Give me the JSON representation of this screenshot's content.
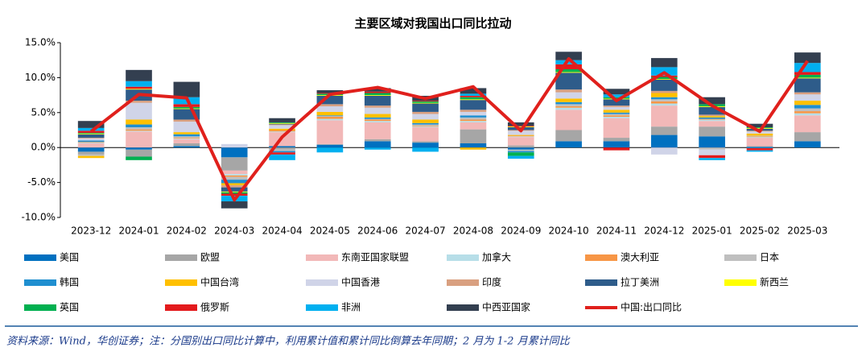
{
  "chart_data": {
    "type": "bar",
    "title": "主要区域对我国出口同比拉动",
    "categories": [
      "2023-12",
      "2024-01",
      "2024-02",
      "2024-03",
      "2024-04",
      "2024-05",
      "2024-06",
      "2024-07",
      "2024-08",
      "2024-09",
      "2024-10",
      "2024-11",
      "2024-12",
      "2025-01",
      "2025-02",
      "2025-03"
    ],
    "series": [
      {
        "name": "美国",
        "color": "#0070c0",
        "values": [
          -0.6,
          -0.3,
          0.2,
          -1.4,
          0.2,
          0.4,
          0.9,
          0.7,
          0.6,
          -0.3,
          0.9,
          0.9,
          1.8,
          1.6,
          0.1,
          0.9
        ]
      },
      {
        "name": "欧盟",
        "color": "#a6a6a6",
        "values": [
          -0.4,
          -1.0,
          0.4,
          -1.9,
          -0.3,
          0.1,
          0.3,
          0.2,
          2.0,
          0.3,
          1.6,
          0.5,
          1.2,
          1.4,
          0.1,
          1.3
        ]
      },
      {
        "name": "东南亚国家联盟",
        "color": "#f2b8b8",
        "values": [
          0.6,
          2.3,
          0.6,
          -0.5,
          2.0,
          3.4,
          2.4,
          2.0,
          1.0,
          1.2,
          2.9,
          2.8,
          3.0,
          0.8,
          1.2,
          2.4
        ]
      },
      {
        "name": "加拿大",
        "color": "#b7dee8",
        "values": [
          0.1,
          0.1,
          0.1,
          -0.2,
          0.1,
          0.2,
          0.2,
          0.1,
          0.2,
          0.1,
          0.3,
          0.2,
          0.3,
          0.2,
          0.1,
          0.3
        ]
      },
      {
        "name": "澳大利亚",
        "color": "#f79646",
        "values": [
          0.1,
          0.2,
          0.1,
          -0.2,
          0.2,
          0.3,
          0.2,
          0.1,
          0.2,
          0.1,
          0.2,
          0.2,
          0.3,
          0.1,
          0.1,
          0.3
        ]
      },
      {
        "name": "日本",
        "color": "#bfbfbf",
        "values": [
          -0.2,
          0.3,
          0.2,
          -0.4,
          -0.2,
          0.1,
          0.1,
          0.2,
          0.3,
          -0.2,
          0.3,
          0.2,
          0.3,
          -0.3,
          0.1,
          0.4
        ]
      },
      {
        "name": "韩国",
        "color": "#1f8fd0",
        "values": [
          0.2,
          0.4,
          0.3,
          -0.5,
          -0.2,
          0.1,
          0.2,
          0.2,
          0.3,
          -0.2,
          0.3,
          0.2,
          0.3,
          0.2,
          -0.1,
          0.5
        ]
      },
      {
        "name": "中国台湾",
        "color": "#ffc000",
        "values": [
          -0.3,
          0.7,
          0.3,
          -0.3,
          0.2,
          0.5,
          0.5,
          0.5,
          -0.3,
          0.1,
          0.5,
          0.4,
          0.6,
          0.2,
          0.3,
          0.6
        ]
      },
      {
        "name": "中国香港",
        "color": "#d0d4e8",
        "values": [
          0.3,
          2.4,
          1.5,
          0.5,
          0.5,
          0.8,
          0.9,
          0.8,
          0.5,
          0.6,
          0.9,
          0.4,
          -1.0,
          -0.8,
          0.3,
          0.9
        ]
      },
      {
        "name": "印度",
        "color": "#d9a080",
        "values": [
          0.1,
          0.3,
          0.3,
          -0.3,
          0.1,
          0.3,
          0.3,
          0.3,
          0.3,
          0.1,
          0.4,
          0.2,
          0.3,
          0.2,
          0.1,
          0.3
        ]
      },
      {
        "name": "拉丁美洲",
        "color": "#2e5c8a",
        "values": [
          0.5,
          1.6,
          1.5,
          -0.6,
          0.1,
          1.2,
          1.4,
          1.2,
          1.4,
          0.4,
          2.4,
          0.9,
          1.6,
          1.1,
          0.3,
          2.0
        ]
      },
      {
        "name": "新西兰",
        "color": "#ffff00",
        "values": [
          0.1,
          0.1,
          0.1,
          -0.1,
          0.1,
          0.1,
          0.1,
          0.1,
          0.1,
          0.1,
          0.1,
          0.1,
          0.1,
          0.1,
          0.1,
          0.1
        ]
      },
      {
        "name": "英国",
        "color": "#00b050",
        "values": [
          0.1,
          -0.5,
          0.2,
          -0.2,
          0.1,
          0.2,
          0.3,
          0.2,
          0.3,
          -0.5,
          0.4,
          0.2,
          0.3,
          0.3,
          0.1,
          0.4
        ]
      },
      {
        "name": "俄罗斯",
        "color": "#e31a1c",
        "values": [
          0.3,
          0.3,
          0.4,
          -0.3,
          -0.3,
          0.1,
          0.2,
          0.1,
          0.2,
          0.1,
          0.7,
          -0.4,
          0.2,
          -0.4,
          -0.3,
          0.4
        ]
      },
      {
        "name": "非洲",
        "color": "#00b0f0",
        "values": [
          0.4,
          0.8,
          1.0,
          -0.8,
          -0.8,
          -0.7,
          -0.3,
          -0.6,
          0.3,
          -0.4,
          0.6,
          0.4,
          1.2,
          -0.3,
          -0.2,
          1.3
        ]
      },
      {
        "name": "中西亚国家",
        "color": "#333f50",
        "values": [
          1.0,
          1.6,
          2.2,
          -1.0,
          0.6,
          0.4,
          0.5,
          0.7,
          0.8,
          0.5,
          1.2,
          0.8,
          1.3,
          1.0,
          0.5,
          1.5
        ]
      },
      {
        "name": "中国:出口同比",
        "color": "#e0201c",
        "type": "line",
        "values": [
          2.3,
          7.6,
          7.1,
          -7.5,
          1.5,
          7.6,
          8.6,
          7.0,
          8.7,
          2.4,
          12.7,
          6.7,
          10.7,
          6.0,
          2.3,
          12.4
        ]
      }
    ],
    "ylim": [
      -10,
      15
    ],
    "yticks": [
      {
        "value": -10,
        "label": "-10.0%"
      },
      {
        "value": -5,
        "label": "-5.0%"
      },
      {
        "value": 0,
        "label": "0.0%"
      },
      {
        "value": 5,
        "label": "5.0%"
      },
      {
        "value": 10,
        "label": "10.0%"
      },
      {
        "value": 15,
        "label": "15.0%"
      }
    ],
    "note": "资料来源：Wind，华创证券；注：分国别出口同比计算中，利用累计值和累计同比倒算去年同期；2 月为 1-2 月累计同比"
  }
}
